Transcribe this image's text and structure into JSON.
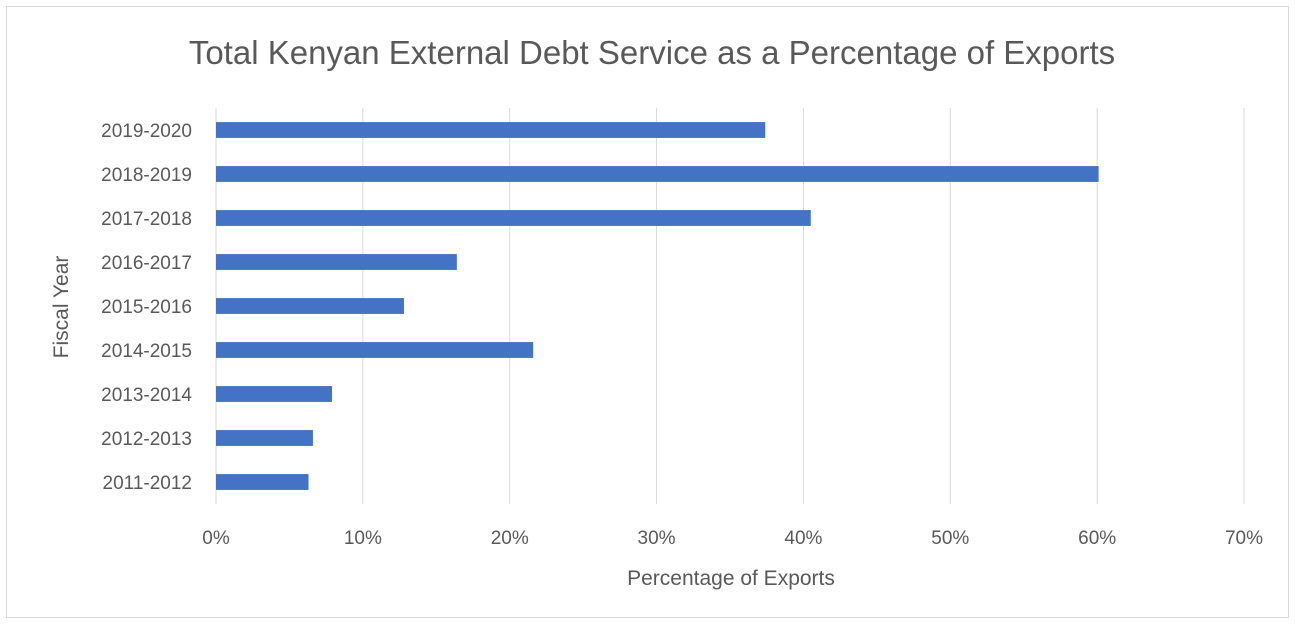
{
  "chart_data": {
    "type": "bar",
    "orientation": "horizontal",
    "title": "Total Kenyan External Debt Service as a Percentage of Exports",
    "xlabel": "Percentage of Exports",
    "ylabel": "Fiscal Year",
    "categories": [
      "2011-2012",
      "2012-2013",
      "2013-2014",
      "2014-2015",
      "2015-2016",
      "2016-2017",
      "2017-2018",
      "2018-2019",
      "2019-2020"
    ],
    "values": [
      6.3,
      6.6,
      7.9,
      21.6,
      12.8,
      16.4,
      40.5,
      60.1,
      37.4
    ],
    "xlim": [
      0,
      70
    ],
    "xticks": [
      0,
      10,
      20,
      30,
      40,
      50,
      60,
      70
    ],
    "xtick_labels": [
      "0%",
      "10%",
      "20%",
      "30%",
      "40%",
      "50%",
      "60%",
      "70%"
    ],
    "bar_color": "#4472C4",
    "gridlines": "vertical",
    "legend": "none"
  }
}
